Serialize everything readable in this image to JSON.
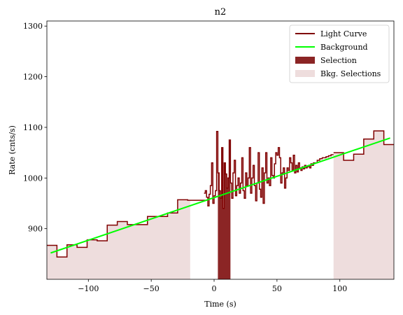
{
  "chart_data": {
    "type": "line",
    "title": "n2",
    "xlabel": "Time (s)",
    "ylabel": "Rate (cnts/s)",
    "xlim": [
      -133,
      143
    ],
    "ylim": [
      800,
      1310
    ],
    "xticks": [
      -100,
      -50,
      0,
      50,
      100
    ],
    "yticks": [
      900,
      1000,
      1100,
      1200,
      1300
    ],
    "legend": {
      "position": "top-right",
      "entries": [
        {
          "label": "Light Curve",
          "kind": "line",
          "color": "#800000"
        },
        {
          "label": "Background",
          "kind": "line",
          "color": "#00ff00"
        },
        {
          "label": "Selection",
          "kind": "patch",
          "color": "#8b2525"
        },
        {
          "label": "Bkg. Selections",
          "kind": "patch",
          "color": "#eedddd"
        }
      ]
    },
    "light_curve": {
      "color": "#800000",
      "coarse_left": {
        "edges": [
          -133,
          -125,
          -117,
          -109,
          -101,
          -93,
          -85,
          -77,
          -69,
          -61,
          -53,
          -45,
          -37,
          -29,
          -21,
          -13,
          -5
        ],
        "values": [
          867,
          844,
          868,
          863,
          878,
          876,
          907,
          914,
          908,
          908,
          924,
          924,
          931,
          957,
          956,
          956
        ]
      },
      "fine": {
        "step": 1,
        "times": [
          -8,
          -7,
          -6,
          -5,
          -4,
          -3,
          -2,
          -1,
          0,
          1,
          2,
          3,
          4,
          5,
          6,
          7,
          8,
          9,
          10,
          11,
          12,
          13,
          14,
          15,
          16,
          17,
          18,
          19,
          20,
          21,
          22,
          23,
          24,
          25,
          26,
          27,
          28,
          29,
          30,
          31,
          32,
          33,
          34,
          35,
          36,
          37,
          38,
          39,
          40,
          41,
          42,
          43,
          44,
          45,
          46,
          47,
          48,
          49,
          50,
          51,
          52,
          53,
          54,
          55,
          56,
          57,
          58,
          59,
          60,
          61,
          62,
          63,
          64,
          65,
          66,
          67,
          68,
          69,
          70,
          71,
          72,
          73,
          74,
          75,
          76,
          77,
          78,
          79,
          80,
          81,
          82,
          83,
          84,
          85,
          86,
          87,
          88,
          89,
          90,
          91,
          92,
          93,
          94
        ],
        "values": [
          970,
          975,
          962,
          945,
          968,
          985,
          1030,
          950,
          965,
          975,
          1092,
          1010,
          975,
          960,
          1060,
          940,
          1030,
          1008,
          980,
          1000,
          1075,
          990,
          960,
          1010,
          1035,
          965,
          985,
          1000,
          970,
          990,
          1040,
          975,
          960,
          1010,
          985,
          1000,
          1060,
          970,
          1000,
          1025,
          985,
          955,
          990,
          1050,
          978,
          962,
          1020,
          950,
          1010,
          1050,
          990,
          1000,
          985,
          1040,
          1005,
          1000,
          1028,
          1050,
          1045,
          1060,
          1040,
          990,
          1010,
          1020,
          980,
          1000,
          1020,
          1015,
          1040,
          1030,
          1015,
          1045,
          1010,
          1025,
          1012,
          1030,
          1020,
          1015,
          1022,
          1018,
          1025,
          1020,
          1022,
          1025,
          1020,
          1028,
          1025,
          1030,
          1030,
          1030,
          1035,
          1035,
          1038,
          1038,
          1040,
          1040,
          1040,
          1042,
          1042,
          1044,
          1044,
          1046,
          1046
        ]
      },
      "coarse_right": {
        "edges": [
          95,
          103,
          111,
          119,
          127,
          135,
          143
        ],
        "values": [
          1050,
          1035,
          1047,
          1077,
          1093,
          1066
        ]
      },
      "mid_coarse": {
        "edges": [
          43,
          51,
          59,
          67,
          75,
          83,
          87,
          95
        ],
        "values": [
          1017,
          1010,
          1020,
          1025,
          1052,
          1033,
          1040
        ]
      }
    },
    "background": {
      "color": "#00ff00",
      "x": [
        -130,
        140
      ],
      "y": [
        852,
        1079
      ]
    },
    "selection": {
      "color": "#8b2525",
      "x_range": [
        3,
        13
      ]
    },
    "bkg_selections": {
      "color": "#eedddd",
      "ranges": [
        [
          -133,
          -19
        ],
        [
          95,
          143
        ]
      ]
    }
  }
}
